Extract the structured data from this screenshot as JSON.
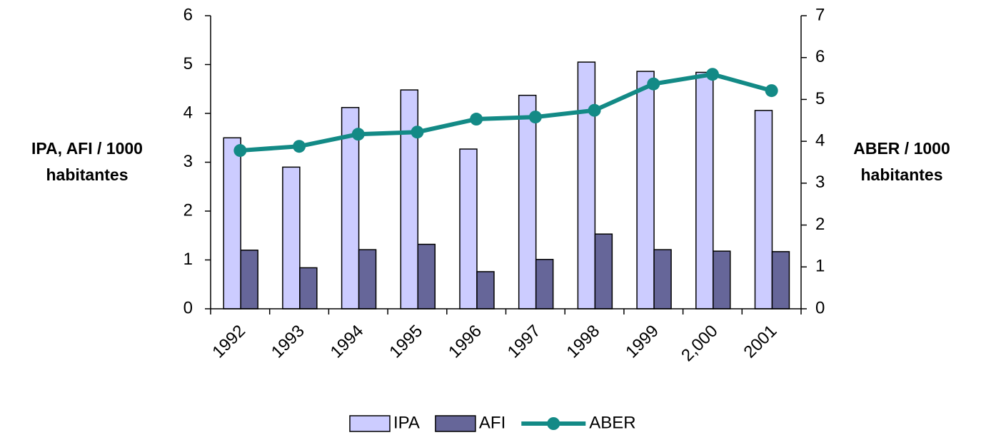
{
  "chart_data": {
    "type": "bar",
    "categories": [
      "1992",
      "1993",
      "1994",
      "1995",
      "1996",
      "1997",
      "1998",
      "1999",
      "2,000",
      "2001"
    ],
    "series": [
      {
        "name": "IPA",
        "type": "bar",
        "color": "#ccccff",
        "values": [
          3.5,
          2.9,
          4.12,
          4.48,
          3.27,
          4.37,
          5.05,
          4.86,
          4.84,
          4.06
        ]
      },
      {
        "name": "AFI",
        "type": "bar",
        "color": "#666699",
        "values": [
          1.2,
          0.84,
          1.21,
          1.32,
          0.76,
          1.01,
          1.53,
          1.21,
          1.18,
          1.17
        ]
      },
      {
        "name": "ABER",
        "type": "line",
        "axis": "y2",
        "color": "#138a86",
        "values": [
          3.78,
          3.88,
          4.17,
          4.22,
          4.53,
          4.58,
          4.74,
          5.37,
          5.6,
          5.21
        ]
      }
    ],
    "y_label": [
      "IPA, AFI / 1000",
      "habitantes"
    ],
    "y2_label": [
      "ABER / 1000",
      "habitantes"
    ],
    "ylim": [
      0,
      6
    ],
    "yticks": [
      0,
      1,
      2,
      3,
      4,
      5,
      6
    ],
    "y2lim": [
      0,
      7
    ],
    "y2ticks": [
      0,
      1,
      2,
      3,
      4,
      5,
      6,
      7
    ],
    "legend": "bottom"
  }
}
